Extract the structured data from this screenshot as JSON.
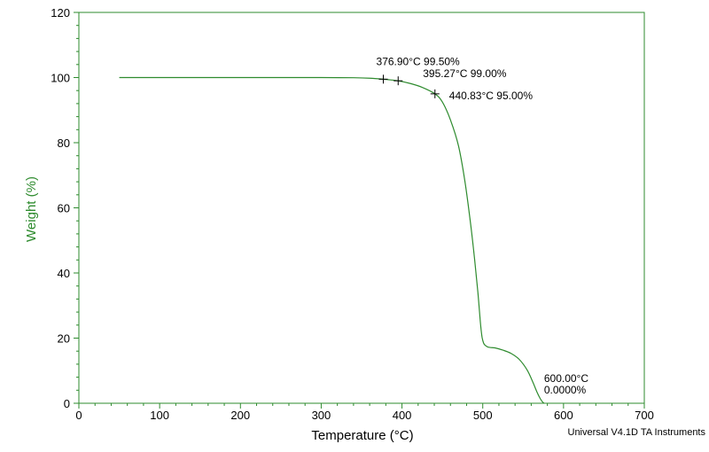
{
  "chart_data": {
    "type": "line",
    "xlabel": "Temperature (°C)",
    "ylabel": "Weight (%)",
    "xlim": [
      0,
      700
    ],
    "ylim": [
      0,
      120
    ],
    "x_ticks": [
      0,
      100,
      200,
      300,
      400,
      500,
      600,
      700
    ],
    "y_ticks": [
      0,
      20,
      40,
      60,
      80,
      100,
      120
    ],
    "grid": false,
    "series": [
      {
        "color": "#2e8b2e",
        "x": [
          50,
          100,
          150,
          200,
          250,
          300,
          340,
          360,
          376.9,
          385,
          395.27,
          410,
          425,
          440.83,
          450,
          460,
          470,
          478,
          485,
          490,
          494,
          497,
          499,
          501,
          503,
          506,
          510,
          515,
          525,
          535,
          545,
          555,
          562,
          567,
          571,
          574,
          576
        ],
        "y": [
          100,
          100,
          100,
          100,
          100,
          100,
          99.95,
          99.8,
          99.5,
          99.3,
          99.0,
          98.2,
          97.0,
          95.0,
          92.5,
          87,
          79,
          68,
          55,
          44,
          34,
          25,
          20.5,
          18.5,
          17.8,
          17.3,
          17.1,
          17.0,
          16.3,
          15.3,
          13.5,
          10.2,
          6.5,
          3.5,
          1.5,
          0.4,
          0
        ]
      }
    ],
    "annotations": [
      {
        "x": 376.9,
        "y": 99.5,
        "text": "376.90°C 99.50%",
        "marker": true
      },
      {
        "x": 395.27,
        "y": 99.0,
        "text": "395.27°C 99.00%",
        "marker": true
      },
      {
        "x": 440.83,
        "y": 95.0,
        "text": "440.83°C 95.00%",
        "marker": true
      },
      {
        "x": 600,
        "y": 0,
        "lines": [
          "600.00°C",
          "0.0000%"
        ],
        "marker": false
      }
    ]
  },
  "footer": {
    "text": "Universal V4.1D TA Instruments"
  },
  "colors": {
    "axes": "#2e8b2e",
    "curve": "#2e8b2e",
    "ylabel": "#2e8b2e"
  }
}
